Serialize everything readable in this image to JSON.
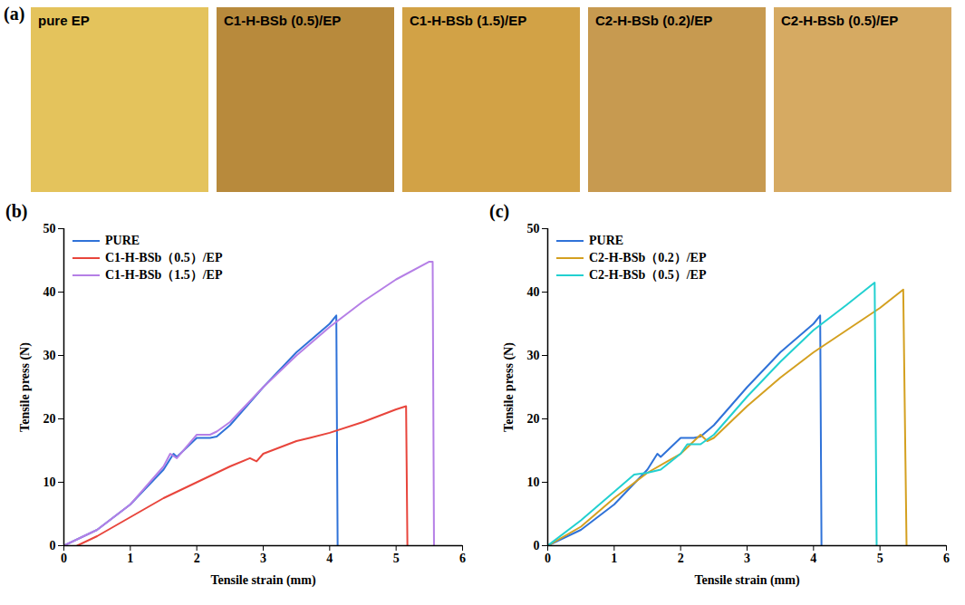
{
  "photo_panel": {
    "letter": "(a)",
    "items": [
      {
        "label": "pure EP",
        "color": "#e4c35c"
      },
      {
        "label": "C1-H-BSb (0.5)/EP",
        "color": "#b88a3c"
      },
      {
        "label": "C1-H-BSb (1.5)/EP",
        "color": "#d2a246"
      },
      {
        "label": "C2-H-BSb (0.2)/EP",
        "color": "#c79a50"
      },
      {
        "label": "C2-H-BSb (0.5)/EP",
        "color": "#d6aa62"
      }
    ]
  },
  "chart_data": [
    {
      "type": "line",
      "letter": "(b)",
      "xlabel": "Tensile strain (mm)",
      "ylabel": "Tensile press (N)",
      "xlim": [
        0,
        6
      ],
      "xticks": [
        0,
        1,
        2,
        3,
        4,
        5,
        6
      ],
      "ylim": [
        0,
        50
      ],
      "yticks": [
        0,
        10,
        20,
        30,
        40,
        50
      ],
      "legend": "upper left",
      "series": [
        {
          "name": "PURE",
          "color": "#2f72d8",
          "x": [
            0,
            0.5,
            1,
            1.5,
            1.65,
            1.7,
            1.8,
            2,
            2.2,
            2.3,
            2.5,
            3,
            3.5,
            4,
            4.1,
            4.12
          ],
          "values": [
            0,
            2.5,
            6.5,
            12,
            14.5,
            14,
            15,
            17,
            17,
            17.2,
            19,
            25,
            30.5,
            35,
            36.3,
            0
          ]
        },
        {
          "name": "C1-H-BSb（0.5）/EP",
          "color": "#e8453c",
          "x": [
            0.2,
            0.5,
            1,
            1.5,
            2,
            2.5,
            2.8,
            2.9,
            3,
            3.5,
            3.7,
            4,
            4.5,
            5,
            5.15,
            5.17
          ],
          "values": [
            0,
            1.5,
            4.5,
            7.5,
            10,
            12.5,
            13.8,
            13.3,
            14.5,
            16.5,
            17,
            17.8,
            19.5,
            21.5,
            22,
            0
          ]
        },
        {
          "name": "C1-H-BSb（1.5）/EP",
          "color": "#b57fe6",
          "x": [
            0,
            0.5,
            1,
            1.5,
            1.6,
            1.7,
            2,
            2.2,
            2.3,
            2.5,
            3,
            3.5,
            4,
            4.5,
            5,
            5.5,
            5.55,
            5.57
          ],
          "values": [
            0,
            2.5,
            6.5,
            12.5,
            14.5,
            13.8,
            17.5,
            17.5,
            18,
            19.5,
            25,
            30,
            34.5,
            38.5,
            42,
            44.8,
            44.8,
            0
          ]
        }
      ]
    },
    {
      "type": "line",
      "letter": "(c)",
      "xlabel": "Tensile strain (mm)",
      "ylabel": "Tensile press (N)",
      "xlim": [
        0,
        6
      ],
      "xticks": [
        0,
        1,
        2,
        3,
        4,
        5,
        6
      ],
      "ylim": [
        0,
        50
      ],
      "yticks": [
        0,
        10,
        20,
        30,
        40,
        50
      ],
      "legend": "upper left",
      "series": [
        {
          "name": "PURE",
          "color": "#2f72d8",
          "x": [
            0,
            0.5,
            1,
            1.5,
            1.65,
            1.7,
            1.8,
            2,
            2.2,
            2.3,
            2.5,
            3,
            3.5,
            4,
            4.1,
            4.12
          ],
          "values": [
            0,
            2.5,
            6.5,
            12,
            14.5,
            14,
            15,
            17,
            17,
            17.2,
            19,
            25,
            30.5,
            35,
            36.3,
            0
          ]
        },
        {
          "name": "C2-H-BSb（0.2）/EP",
          "color": "#d4a020",
          "x": [
            0,
            0.5,
            1,
            1.5,
            2,
            2.3,
            2.4,
            2.5,
            3,
            3.5,
            4,
            4.5,
            5,
            5.35,
            5.4
          ],
          "values": [
            0,
            3,
            7.5,
            11.5,
            14.5,
            17.5,
            16.5,
            17,
            22,
            26.5,
            30.5,
            34,
            37.5,
            40.4,
            0
          ]
        },
        {
          "name": "C2-H-BSb（0.5）/EP",
          "color": "#22d0d0",
          "x": [
            0,
            0.5,
            1,
            1.3,
            1.5,
            1.7,
            2,
            2.1,
            2.3,
            2.5,
            3,
            3.5,
            4,
            4.5,
            4.92,
            4.95
          ],
          "values": [
            0,
            4,
            8.5,
            11.2,
            11.5,
            12,
            14.5,
            16,
            16,
            17.5,
            23.5,
            29,
            34,
            38,
            41.5,
            0
          ]
        }
      ]
    }
  ]
}
